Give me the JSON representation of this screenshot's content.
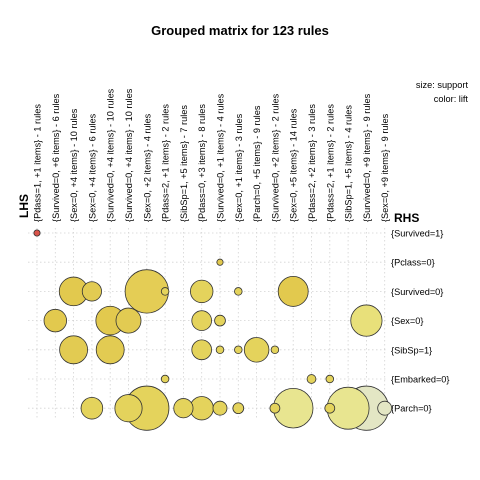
{
  "chart_data": {
    "type": "scatter",
    "title": "Grouped matrix for 123 rules",
    "xlabel": "LHS",
    "ylabel": "RHS",
    "legend": {
      "size": "size: support",
      "color": "color: lift",
      "placement": "top-right"
    },
    "lhs": [
      "{Pdass=1, +1 items} - 1 rules",
      "{Survived=0, +6 items} - 6 rules",
      "{Sex=0, +4 items} - 10 rules",
      "{Sex=0, +4 items} - 6 rules",
      "{Survived=0, +4 items} - 10 rules",
      "{Survived=0, +4 items} - 10 rules",
      "{Sex=0, +2 items} - 4 rules",
      "{Pdass=2, +1 items} - 2 rules",
      "{SibSp=1, +5 items} - 7 rules",
      "{Pdass=0, +3 items} - 8 rules",
      "{Survived=0, +1 items} - 4 rules",
      "{Sex=0, +1 items} - 3 rules",
      "{Parch=0, +5 items} - 9 rules",
      "{Survived=0, +2 items} - 2 rules",
      "{Sex=0, +5 items} - 14 rules",
      "{Pdass=2, +2 items} - 3 rules",
      "{Pdass=2, +1 items} - 2 rules",
      "{SibSp=1, +5 items} - 4 rules",
      "{Survived=0, +9 items} - 9 rules",
      "{Sex=0, +9 items} - 9 rules"
    ],
    "rhs": [
      "{Survived=1}",
      "{Pclass=0}",
      "{Survived=0}",
      "{Sex=0}",
      "{SibSp=1}",
      "{Embarked=0}",
      "{Parch=0}"
    ],
    "points": [
      {
        "lhs": 1,
        "rhs": 1,
        "support": 0.2,
        "color": "#d9534a"
      },
      {
        "lhs": 11,
        "rhs": 2,
        "support": 0.2,
        "color": "#e2c94e"
      },
      {
        "lhs": 3,
        "rhs": 3,
        "support": 4.2,
        "color": "#e2c94e"
      },
      {
        "lhs": 4,
        "rhs": 3,
        "support": 1.9,
        "color": "#e2cb52"
      },
      {
        "lhs": 7,
        "rhs": 3,
        "support": 9.6,
        "color": "#e4cd55"
      },
      {
        "lhs": 8,
        "rhs": 3,
        "support": 0.3,
        "color": "#e4d35c"
      },
      {
        "lhs": 10,
        "rhs": 3,
        "support": 2.6,
        "color": "#e4d35c"
      },
      {
        "lhs": 12,
        "rhs": 3,
        "support": 0.3,
        "color": "#e4d35c"
      },
      {
        "lhs": 15,
        "rhs": 3,
        "support": 4.6,
        "color": "#e2c94e"
      },
      {
        "lhs": 2,
        "rhs": 4,
        "support": 2.6,
        "color": "#e2c94e"
      },
      {
        "lhs": 5,
        "rhs": 4,
        "support": 4.2,
        "color": "#e2c94e"
      },
      {
        "lhs": 6,
        "rhs": 4,
        "support": 3.2,
        "color": "#e2cb52"
      },
      {
        "lhs": 10,
        "rhs": 4,
        "support": 2.0,
        "color": "#e4d35c"
      },
      {
        "lhs": 11,
        "rhs": 4,
        "support": 0.6,
        "color": "#e4d35c"
      },
      {
        "lhs": 19,
        "rhs": 4,
        "support": 5.0,
        "color": "#e8e07a"
      },
      {
        "lhs": 3,
        "rhs": 5,
        "support": 4.0,
        "color": "#e2cb52"
      },
      {
        "lhs": 5,
        "rhs": 5,
        "support": 4.0,
        "color": "#e2cb52"
      },
      {
        "lhs": 10,
        "rhs": 5,
        "support": 2.0,
        "color": "#e4d35c"
      },
      {
        "lhs": 11,
        "rhs": 5,
        "support": 0.3,
        "color": "#e4d35c"
      },
      {
        "lhs": 12,
        "rhs": 5,
        "support": 0.3,
        "color": "#e4d35c"
      },
      {
        "lhs": 13,
        "rhs": 5,
        "support": 3.1,
        "color": "#e4d35c"
      },
      {
        "lhs": 14,
        "rhs": 5,
        "support": 0.3,
        "color": "#e4d35c"
      },
      {
        "lhs": 8,
        "rhs": 6,
        "support": 0.3,
        "color": "#e4d35c"
      },
      {
        "lhs": 16,
        "rhs": 6,
        "support": 0.4,
        "color": "#e4d35c"
      },
      {
        "lhs": 17,
        "rhs": 6,
        "support": 0.3,
        "color": "#e4d35c"
      },
      {
        "lhs": 4,
        "rhs": 7,
        "support": 2.4,
        "color": "#e4d35c"
      },
      {
        "lhs": 6,
        "rhs": 7,
        "support": 3.8,
        "color": "#e4d35c"
      },
      {
        "lhs": 7,
        "rhs": 7,
        "support": 10.0,
        "color": "#e4d35c"
      },
      {
        "lhs": 9,
        "rhs": 7,
        "support": 1.9,
        "color": "#e4d35c"
      },
      {
        "lhs": 10,
        "rhs": 7,
        "support": 2.8,
        "color": "#e4d35c"
      },
      {
        "lhs": 11,
        "rhs": 7,
        "support": 1.0,
        "color": "#e4d35c"
      },
      {
        "lhs": 12,
        "rhs": 7,
        "support": 0.6,
        "color": "#e4d35c"
      },
      {
        "lhs": 14,
        "rhs": 7,
        "support": 0.5,
        "color": "#e4d35c"
      },
      {
        "lhs": 15,
        "rhs": 7,
        "support": 8.0,
        "color": "#e8e590"
      },
      {
        "lhs": 17,
        "rhs": 7,
        "support": 0.5,
        "color": "#e4d35c"
      },
      {
        "lhs": 18,
        "rhs": 7,
        "support": 9.0,
        "color": "#e8e590"
      },
      {
        "lhs": 19,
        "rhs": 7,
        "support": 10.0,
        "color": "#e3e6c4"
      },
      {
        "lhs": 20,
        "rhs": 7,
        "support": 1.0,
        "color": "#e3e6c4"
      }
    ],
    "grid": true
  }
}
